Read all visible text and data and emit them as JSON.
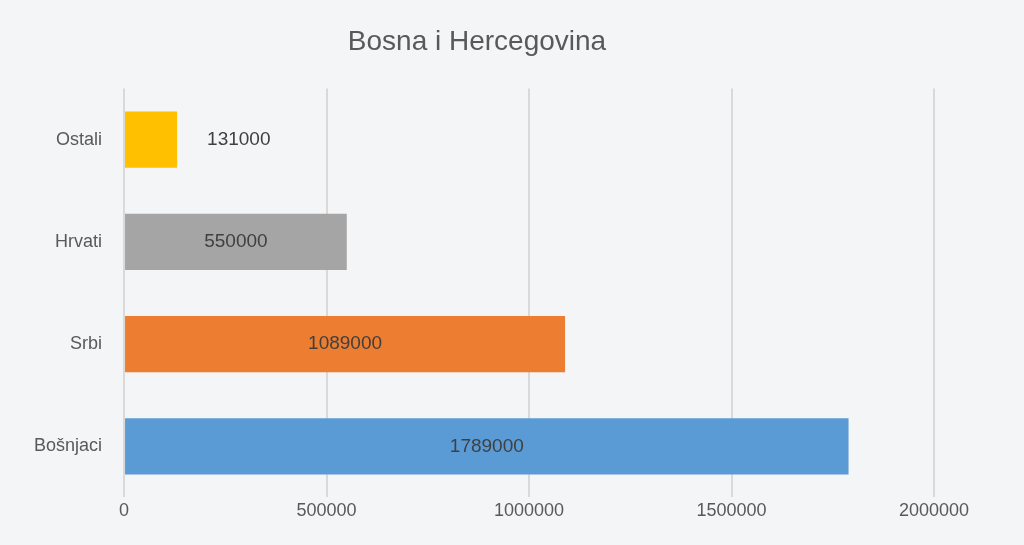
{
  "chart_data": {
    "type": "bar",
    "orientation": "horizontal",
    "title": "Bosna i Hercegovina",
    "categories": [
      "Ostali",
      "Hrvati",
      "Srbi",
      "Bošnjaci"
    ],
    "values": [
      131000,
      550000,
      1089000,
      1789000
    ],
    "colors": [
      "#ffc000",
      "#a5a5a5",
      "#ed7d31",
      "#5b9bd5"
    ],
    "xlim": [
      0,
      2000000
    ],
    "xticks": [
      0,
      500000,
      1000000,
      1500000,
      2000000
    ],
    "grid": "x",
    "data_labels": true
  }
}
